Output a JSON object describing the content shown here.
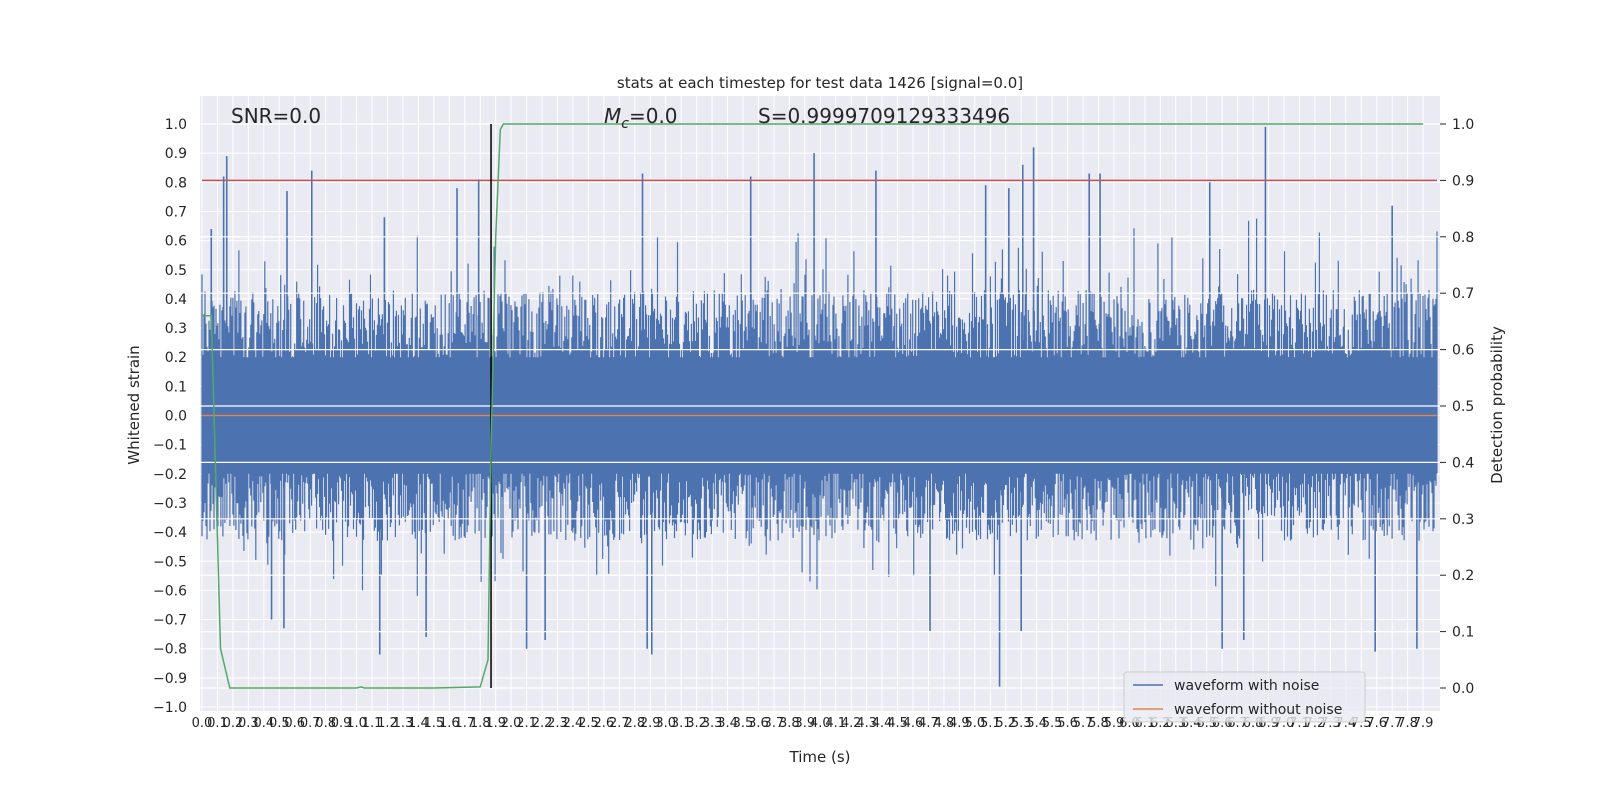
{
  "chart_data": {
    "type": "line",
    "title": "stats at each timestep for test data 1426 [signal=0.0]",
    "xlabel": "Time (s)",
    "ylabel": "Whitened strain",
    "y2label": "Detection probability",
    "xlim": [
      0.0,
      7.99
    ],
    "ylim": [
      -1.05,
      1.05
    ],
    "y2lim": [
      -0.05,
      1.05
    ],
    "x_ticks": [
      "0.0",
      "0.1",
      "0.2",
      "0.3",
      "0.4",
      "0.5",
      "0.6",
      "0.7",
      "0.8",
      "0.9",
      "1.0",
      "1.1",
      "1.2",
      "1.3",
      "1.4",
      "1.5",
      "1.6",
      "1.7",
      "1.8",
      "1.9",
      "2.0",
      "2.1",
      "2.2",
      "2.3",
      "2.4",
      "2.5",
      "2.6",
      "2.7",
      "2.8",
      "2.9",
      "3.0",
      "3.1",
      "3.2",
      "3.3",
      "3.4",
      "3.5",
      "3.6",
      "3.7",
      "3.8",
      "3.9",
      "4.0",
      "4.1",
      "4.2",
      "4.3",
      "4.4",
      "4.5",
      "4.6",
      "4.7",
      "4.8",
      "4.9",
      "5.0",
      "5.1",
      "5.2",
      "5.3",
      "5.4",
      "5.5",
      "5.6",
      "5.7",
      "5.8",
      "5.9",
      "6.0",
      "6.1",
      "6.2",
      "6.3",
      "6.4",
      "6.5",
      "6.6",
      "6.7",
      "6.8",
      "6.9",
      "7.0",
      "7.1",
      "7.2",
      "7.3",
      "7.4",
      "7.5",
      "7.6",
      "7.7",
      "7.8",
      "7.9"
    ],
    "y_ticks": [
      "−1.0",
      "−0.9",
      "−0.8",
      "−0.7",
      "−0.6",
      "−0.5",
      "−0.4",
      "−0.3",
      "−0.2",
      "−0.1",
      "0.0",
      "0.1",
      "0.2",
      "0.3",
      "0.4",
      "0.5",
      "0.6",
      "0.7",
      "0.8",
      "0.9",
      "1.0"
    ],
    "y2_ticks": [
      "0.0",
      "0.1",
      "0.2",
      "0.3",
      "0.4",
      "0.5",
      "0.6",
      "0.7",
      "0.8",
      "0.9",
      "1.0"
    ],
    "annotations": {
      "snr": "SNR=0.0",
      "mc_symbol": "M",
      "mc_sub": "c",
      "mc_value": "=0.0",
      "s_value": "S=0.9999709129333496"
    },
    "threshold": {
      "axis": "right",
      "value": 0.9,
      "color": "#c44e52"
    },
    "event_line_x": 1.87,
    "series": [
      {
        "name": "waveform with noise",
        "axis": "left",
        "color": "#4c72b0",
        "kind": "noise",
        "envelope_y": [
          0.55,
          -0.55
        ],
        "peaks": [
          {
            "x": 0.06,
            "y": 0.64
          },
          {
            "x": 0.14,
            "y": 0.82
          },
          {
            "x": 0.16,
            "y": 0.89
          },
          {
            "x": 0.55,
            "y": 0.77
          },
          {
            "x": 0.71,
            "y": 0.84
          },
          {
            "x": 1.18,
            "y": 0.68
          },
          {
            "x": 1.65,
            "y": 0.78
          },
          {
            "x": 1.79,
            "y": 0.81
          },
          {
            "x": 2.85,
            "y": 0.83
          },
          {
            "x": 3.55,
            "y": 0.82
          },
          {
            "x": 3.96,
            "y": 0.9
          },
          {
            "x": 4.36,
            "y": 0.84
          },
          {
            "x": 5.07,
            "y": 0.79
          },
          {
            "x": 5.22,
            "y": 0.78
          },
          {
            "x": 5.31,
            "y": 0.86
          },
          {
            "x": 5.38,
            "y": 0.92
          },
          {
            "x": 5.74,
            "y": 0.83
          },
          {
            "x": 5.81,
            "y": 0.83
          },
          {
            "x": 6.52,
            "y": 0.8
          },
          {
            "x": 6.88,
            "y": 0.99
          },
          {
            "x": 7.7,
            "y": 0.72
          },
          {
            "x": 1.15,
            "y": -0.82
          },
          {
            "x": 1.45,
            "y": -0.76
          },
          {
            "x": 2.1,
            "y": -0.8
          },
          {
            "x": 2.22,
            "y": -0.77
          },
          {
            "x": 2.88,
            "y": -0.8
          },
          {
            "x": 2.91,
            "y": -0.82
          },
          {
            "x": 4.71,
            "y": -0.74
          },
          {
            "x": 5.16,
            "y": -0.93
          },
          {
            "x": 5.3,
            "y": -0.74
          },
          {
            "x": 6.6,
            "y": -0.8
          },
          {
            "x": 6.74,
            "y": -0.77
          },
          {
            "x": 7.59,
            "y": -0.81
          },
          {
            "x": 7.86,
            "y": -0.8
          },
          {
            "x": 0.45,
            "y": -0.7
          },
          {
            "x": 0.53,
            "y": -0.73
          }
        ]
      },
      {
        "name": "waveform without noise",
        "axis": "left",
        "color": "#dd8452",
        "x": [
          0.0,
          7.99
        ],
        "y": [
          0.0,
          0.0
        ]
      },
      {
        "name": "detection probability",
        "axis": "right",
        "color": "#55a868",
        "x": [
          0.0,
          0.06,
          0.12,
          0.18,
          0.5,
          1.0,
          1.03,
          1.05,
          1.5,
          1.8,
          1.85,
          1.87,
          1.9,
          1.93,
          1.95,
          2.5,
          3.0,
          5.0,
          7.9
        ],
        "y": [
          0.66,
          0.66,
          0.07,
          0.0,
          0.0,
          0.0,
          0.002,
          0.0,
          0.0,
          0.002,
          0.05,
          0.42,
          0.8,
          0.99,
          1.0,
          1.0,
          1.0,
          1.0,
          1.0
        ]
      }
    ],
    "legend": {
      "position": "lower right",
      "entries": [
        "waveform with noise",
        "waveform without noise"
      ]
    },
    "grid": true
  }
}
